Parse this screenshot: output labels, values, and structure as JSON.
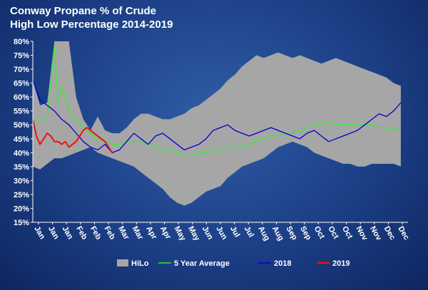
{
  "chart_data": {
    "type": "line",
    "title": "Conway Propane % of Crude",
    "subtitle": "High Low Percentage 2014-2019",
    "xlabel": "",
    "ylabel": "",
    "ylim": [
      15,
      80
    ],
    "y_ticks": [
      "15%",
      "20%",
      "25%",
      "30%",
      "35%",
      "40%",
      "45%",
      "50%",
      "55%",
      "60%",
      "65%",
      "70%",
      "75%",
      "80%"
    ],
    "x_ticks": [
      "Jan",
      "Jan",
      "Jan",
      "Feb",
      "Feb",
      "Feb",
      "Mar",
      "Mar",
      "Apr",
      "Apr",
      "May",
      "May",
      "Jun",
      "Jun",
      "Jul",
      "Jul",
      "Aug",
      "Aug",
      "Sep",
      "Sep",
      "Oct",
      "Oct",
      "Oct",
      "Nov",
      "Nov",
      "Dec",
      "Dec"
    ],
    "x_range": [
      0,
      52
    ],
    "grid": false,
    "legend_position": "bottom",
    "hilo": {
      "name": "HiLo",
      "color": "#a6a6a6",
      "x": [
        0,
        1,
        2,
        3,
        4,
        5,
        6,
        7,
        8,
        9,
        10,
        11,
        12,
        13,
        14,
        15,
        16,
        17,
        18,
        19,
        20,
        21,
        22,
        23,
        24,
        25,
        26,
        27,
        28,
        29,
        30,
        31,
        32,
        33,
        34,
        35,
        36,
        37,
        38,
        39,
        40,
        41,
        42,
        43,
        44,
        45,
        46,
        47,
        48,
        49,
        50,
        51
      ],
      "high": [
        66,
        57,
        58,
        80,
        80,
        80,
        60,
        52,
        48,
        53,
        48,
        47,
        47,
        49,
        52,
        54,
        54,
        53,
        52,
        52,
        53,
        54,
        56,
        57,
        59,
        61,
        63,
        66,
        68,
        71,
        73,
        75,
        74,
        75,
        76,
        75,
        74,
        75,
        74,
        73,
        72,
        73,
        74,
        73,
        72,
        71,
        70,
        69,
        68,
        67,
        65,
        64
      ],
      "low": [
        35,
        34,
        36,
        38,
        38,
        39,
        40,
        41,
        42,
        40,
        39,
        38,
        37,
        36,
        35,
        33,
        31,
        29,
        27,
        24,
        22,
        21,
        22,
        24,
        26,
        27,
        28,
        31,
        33,
        35,
        36,
        37,
        38,
        40,
        42,
        43,
        44,
        43,
        42,
        40,
        39,
        38,
        37,
        36,
        36,
        35,
        35,
        36,
        36,
        36,
        36,
        35
      ]
    },
    "series": [
      {
        "name": "5 Year Average",
        "color": "#33ee33",
        "x": [
          0,
          1,
          2,
          2.5,
          3,
          3.5,
          4,
          4.5,
          5,
          5.5,
          6,
          7,
          8,
          9,
          10,
          11,
          12,
          13,
          14,
          15,
          16,
          17,
          18,
          19,
          20,
          21,
          22,
          23,
          24,
          25,
          26,
          27,
          28,
          29,
          30,
          31,
          32,
          33,
          34,
          35,
          36,
          37,
          38,
          39,
          40,
          41,
          42,
          43,
          44,
          45,
          46,
          47,
          48,
          49,
          50,
          51
        ],
        "values": [
          52,
          51,
          53,
          65,
          78,
          58,
          64,
          60,
          55,
          53,
          52,
          49,
          47,
          45,
          44,
          43,
          43,
          44,
          44,
          44,
          43,
          42,
          41,
          41,
          40,
          39,
          39,
          40,
          40,
          41,
          41,
          42,
          42,
          42,
          43,
          44,
          45,
          46,
          46,
          47,
          47,
          48,
          49,
          50,
          50,
          51,
          50,
          50,
          50,
          50,
          50,
          50,
          49,
          49,
          48,
          49
        ]
      },
      {
        "name": "2018",
        "color": "#0000cc",
        "x": [
          0,
          1,
          2,
          3,
          4,
          5,
          6,
          7,
          8,
          9,
          10,
          11,
          12,
          13,
          14,
          15,
          16,
          17,
          18,
          19,
          20,
          21,
          22,
          23,
          24,
          25,
          26,
          27,
          28,
          29,
          30,
          31,
          32,
          33,
          34,
          35,
          36,
          37,
          38,
          39,
          40,
          41,
          42,
          43,
          44,
          45,
          46,
          47,
          48,
          49,
          50,
          51
        ],
        "values": [
          66,
          59,
          57,
          55,
          52,
          50,
          47,
          44,
          42,
          41,
          43,
          40,
          41,
          44,
          47,
          45,
          43,
          46,
          47,
          45,
          43,
          41,
          42,
          43,
          45,
          48,
          49,
          50,
          48,
          47,
          46,
          47,
          48,
          49,
          48,
          47,
          46,
          45,
          47,
          48,
          46,
          44,
          45,
          46,
          47,
          48,
          50,
          52,
          54,
          53,
          55,
          58
        ]
      },
      {
        "name": "2019",
        "color": "#ee1111",
        "x": [
          0,
          0.5,
          1,
          1.5,
          2,
          2.5,
          3,
          3.5,
          4,
          4.5,
          5,
          5.5,
          6,
          6.5,
          7,
          7.5,
          8,
          8.5,
          9,
          9.5,
          10,
          10.5,
          11
        ],
        "values": [
          52,
          46,
          43,
          45,
          47,
          46,
          44,
          44,
          43,
          44,
          42,
          43,
          44,
          46,
          48,
          49,
          48,
          47,
          46,
          45,
          44,
          42,
          40
        ]
      }
    ]
  }
}
